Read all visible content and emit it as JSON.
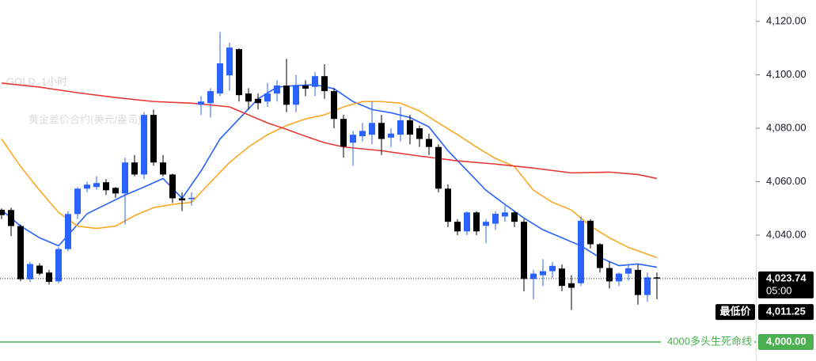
{
  "chart_data": {
    "type": "candlestick",
    "title": "GOLD, 1小时",
    "subtitle": "黄金差价合约(美元/盎司)",
    "up_color": "#2962ff",
    "down_color": "#000000",
    "ylim": [
      3992.9,
      4128
    ],
    "yticks": [
      {
        "value": 4040,
        "label": "4,040.00"
      },
      {
        "value": 4060,
        "label": "4,060.00"
      },
      {
        "value": 4080,
        "label": "4,080.00"
      },
      {
        "value": 4100,
        "label": "4,100.00"
      },
      {
        "value": 4120,
        "label": "4,120.00"
      }
    ],
    "candles": [
      [
        4049.5,
        4050,
        4046,
        4047.5
      ],
      [
        4049.4,
        4050.3,
        4039.6,
        4043.4
      ],
      [
        4043.4,
        4044,
        4022.7,
        4023.5
      ],
      [
        4023.5,
        4030,
        4022.5,
        4029.2
      ],
      [
        4028.6,
        4029.5,
        4025,
        4025.6
      ],
      [
        4026,
        4027,
        4021.5,
        4022.5
      ],
      [
        4022.7,
        4035.5,
        4022,
        4034.8
      ],
      [
        4034.8,
        4049,
        4034,
        4047.9
      ],
      [
        4047.9,
        4058,
        4046,
        4057.4
      ],
      [
        4057.4,
        4060,
        4056,
        4058.9
      ],
      [
        4058,
        4062,
        4057,
        4059.5
      ],
      [
        4059.8,
        4061,
        4055,
        4056.8
      ],
      [
        4057.7,
        4058,
        4054,
        4055.6
      ],
      [
        4055.6,
        4069,
        4044,
        4067.2
      ],
      [
        4067.2,
        4070,
        4062,
        4062.7
      ],
      [
        4062.7,
        4086,
        4061,
        4085
      ],
      [
        4085,
        4087,
        4066,
        4067.2
      ],
      [
        4067.2,
        4070,
        4062,
        4062.7
      ],
      [
        4062.7,
        4063,
        4052,
        4053.8
      ],
      [
        4053.8,
        4056,
        4049,
        4053
      ],
      [
        4053.5,
        4056,
        4051,
        4054
      ],
      [
        4088.8,
        4092,
        4085,
        4090
      ],
      [
        4089.4,
        4095,
        4084,
        4093.9
      ],
      [
        4093,
        4116,
        4092,
        4104.3
      ],
      [
        4099.8,
        4112,
        4094,
        4110.2
      ],
      [
        4109.6,
        4110,
        4090,
        4092.4
      ],
      [
        4093,
        4095,
        4087,
        4090
      ],
      [
        4091,
        4093,
        4087,
        4089.4
      ],
      [
        4090,
        4097,
        4088,
        4093
      ],
      [
        4093,
        4098,
        4090,
        4096
      ],
      [
        4096,
        4106,
        4086,
        4088.8
      ],
      [
        4088.8,
        4100,
        4086,
        4096
      ],
      [
        4096,
        4098,
        4092,
        4094.8
      ],
      [
        4095.5,
        4101,
        4092,
        4099.5
      ],
      [
        4099.5,
        4104,
        4091,
        4093.9
      ],
      [
        4093.9,
        4095,
        4080,
        4083.5
      ],
      [
        4083.5,
        4085,
        4069,
        4073.1
      ],
      [
        4074.6,
        4079,
        4066,
        4077.6
      ],
      [
        4077,
        4082,
        4075,
        4079
      ],
      [
        4077.6,
        4090,
        4074,
        4082
      ],
      [
        4082,
        4085,
        4070,
        4076
      ],
      [
        4076.5,
        4080,
        4073,
        4078
      ],
      [
        4077.6,
        4088,
        4075,
        4083
      ],
      [
        4083,
        4085,
        4074,
        4077.6
      ],
      [
        4080,
        4081,
        4073,
        4076
      ],
      [
        4076,
        4078,
        4070,
        4073
      ],
      [
        4073,
        4074,
        4056,
        4057.4
      ],
      [
        4057.4,
        4059,
        4043,
        4045
      ],
      [
        4045,
        4046,
        4040,
        4041.4
      ],
      [
        4041.4,
        4049,
        4040,
        4048.5
      ],
      [
        4048.5,
        4049,
        4040,
        4041.4
      ],
      [
        4043.5,
        4046,
        4037,
        4045
      ],
      [
        4044.3,
        4049,
        4042,
        4048
      ],
      [
        4047,
        4051,
        4045,
        4048.5
      ],
      [
        4048.5,
        4049,
        4043,
        4045
      ],
      [
        4045,
        4046,
        4019,
        4023.6
      ],
      [
        4023.6,
        4027,
        4016,
        4025.6
      ],
      [
        4025,
        4031,
        4021,
        4026.5
      ],
      [
        4026.5,
        4030,
        4024,
        4028.5
      ],
      [
        4027.5,
        4029,
        4019,
        4021
      ],
      [
        4022,
        4025,
        4012,
        4020.3
      ],
      [
        4022,
        4047,
        4021,
        4045.4
      ],
      [
        4045.4,
        4046,
        4035,
        4036.6
      ],
      [
        4036.6,
        4037,
        4026,
        4027.7
      ],
      [
        4027.7,
        4030,
        4020,
        4022.7
      ],
      [
        4022.7,
        4026,
        4021,
        4025.6
      ],
      [
        4025.6,
        4029,
        4023,
        4027.6
      ],
      [
        4027,
        4029,
        4014,
        4017.6
      ],
      [
        4017.6,
        4026,
        4015,
        4024.2
      ],
      [
        4024.2,
        4026,
        4016,
        4023.74
      ]
    ],
    "ma_lines": [
      {
        "color": "#2962ff",
        "x": [
          0,
          2,
          4,
          6,
          9,
          11,
          13,
          15,
          17,
          19,
          21,
          23,
          25,
          27,
          29,
          31,
          33,
          35,
          37,
          39,
          41,
          43,
          45,
          47,
          49,
          51,
          53,
          55,
          57,
          59,
          61,
          63,
          65,
          67,
          69
        ],
        "values": [
          4049.4,
          4043.4,
          4039,
          4036,
          4048,
          4051.5,
          4055,
          4058,
          4061.2,
          4053.8,
          4064,
          4076,
          4083.5,
          4091,
          4095.4,
          4096,
          4096.3,
          4094.8,
          4090,
          4087,
          4085.8,
          4084,
          4080.5,
          4071.6,
          4064.2,
          4056.8,
          4051.5,
          4046.4,
          4042,
          4039,
          4036,
          4031.6,
          4028.6,
          4029.2,
          4028
        ]
      },
      {
        "color": "#f9a825",
        "x": [
          0,
          2,
          4,
          6,
          8,
          10,
          12,
          14,
          16,
          18,
          20,
          22,
          24,
          26,
          28,
          30,
          32,
          34,
          36,
          38,
          40,
          42,
          44,
          46,
          48,
          50,
          52,
          54,
          56,
          58,
          60,
          62,
          64,
          66,
          69
        ],
        "values": [
          4076,
          4065.7,
          4056.8,
          4048.5,
          4043.4,
          4042.5,
          4043.4,
          4047.3,
          4050.3,
          4051.5,
          4052.3,
          4059.8,
          4067.2,
          4073,
          4077.6,
          4081,
          4083.5,
          4085,
          4088,
          4090,
          4090,
          4089.4,
          4086.5,
          4082,
          4077.6,
          4073,
          4068.7,
          4065.7,
          4056.8,
          4052.3,
          4049.4,
          4043.4,
          4039,
          4035.4,
          4031.6
        ]
      },
      {
        "color": "#e53935",
        "x": [
          0,
          4,
          8,
          12,
          16,
          20,
          24,
          26,
          28,
          30,
          32,
          34,
          36,
          40,
          44,
          48,
          52,
          56,
          60,
          64,
          67,
          69
        ],
        "values": [
          4096.9,
          4095.4,
          4093.3,
          4091.5,
          4090,
          4089.4,
          4088,
          4085,
          4082,
          4079.6,
          4077,
          4074.6,
          4073,
          4071.6,
          4069.6,
          4067.8,
          4066.6,
          4065.1,
          4063.3,
          4063.6,
          4062.7,
          4061.2
        ]
      }
    ],
    "last_price": {
      "value": 4023.74,
      "label": "4,023.74",
      "time": "05:00"
    },
    "low": {
      "name": "最低价",
      "value": 4011.25,
      "label": "4,011.25"
    },
    "level": {
      "name": "4000多头生死命线",
      "value": 4000,
      "label": "4,000.00",
      "color": "#4caf50"
    }
  }
}
